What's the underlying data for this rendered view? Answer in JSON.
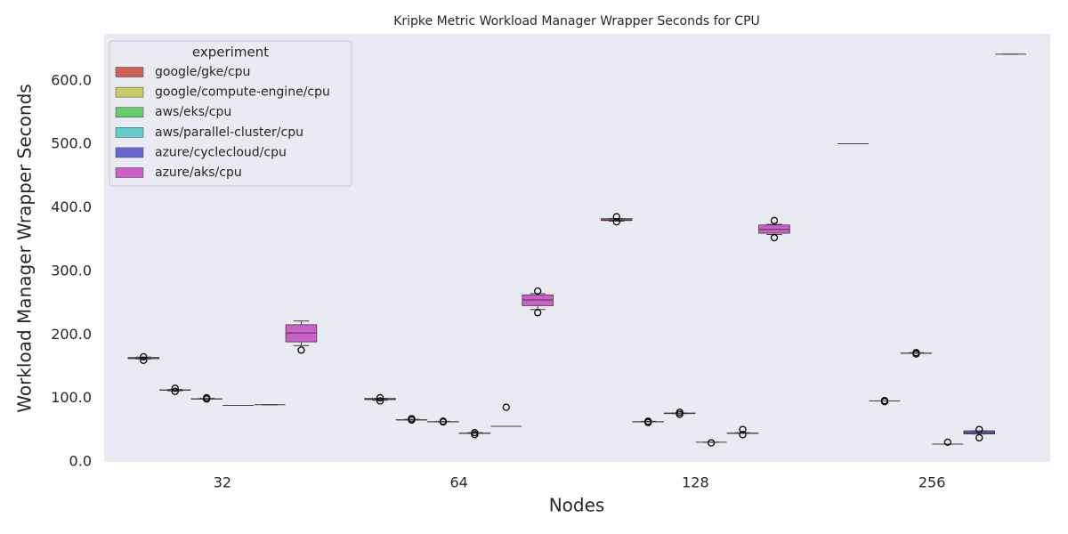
{
  "chart_data": {
    "type": "box",
    "title": "Kripke Metric Workload Manager Wrapper Seconds for CPU",
    "x_label": "Nodes",
    "y_label": "Workload Manager Wrapper Seconds",
    "legend_title": "experiment",
    "legend_position": "upper left",
    "grid": false,
    "categories": [
      "32",
      "64",
      "128",
      "256"
    ],
    "ylim": [
      0,
      674
    ],
    "yticks": [
      {
        "value": 0,
        "label": "0.0"
      },
      {
        "value": 100,
        "label": "100.0"
      },
      {
        "value": 200,
        "label": "200.0"
      },
      {
        "value": 300,
        "label": "300.0"
      },
      {
        "value": 400,
        "label": "400.0"
      },
      {
        "value": 500,
        "label": "500.0"
      },
      {
        "value": 600,
        "label": "600.0"
      }
    ],
    "series": [
      {
        "name": "google/gke/cpu",
        "color": "#cd6058",
        "boxes": [
          {
            "min": 162,
            "q1": 162.5,
            "median": 163,
            "q3": 164.5,
            "max": 165,
            "outliers": [
              160,
              165.5
            ]
          },
          {
            "min": 97,
            "q1": 98,
            "median": 99,
            "q3": 100,
            "max": 100,
            "outliers": [
              96,
              101
            ]
          },
          {
            "min": 379,
            "q1": 380,
            "median": 381,
            "q3": 383,
            "max": 383,
            "outliers": [
              378,
              386
            ]
          },
          {
            "min": 501,
            "q1": 501,
            "median": 501,
            "q3": 501,
            "max": 501
          }
        ]
      },
      {
        "name": "google/compute-engine/cpu",
        "color": "#c6cd63",
        "boxes": [
          {
            "min": 112,
            "q1": 113,
            "median": 113,
            "q3": 113.5,
            "max": 114,
            "outliers": [
              111,
              116
            ]
          },
          {
            "min": 66,
            "q1": 66,
            "median": 66,
            "q3": 66.5,
            "max": 67,
            "outliers": [
              66,
              68
            ]
          },
          {
            "min": 63,
            "q1": 63,
            "median": 63,
            "q3": 63.5,
            "max": 64,
            "outliers": [
              62,
              64
            ]
          },
          {
            "min": 96,
            "q1": 96,
            "median": 96,
            "q3": 96,
            "max": 96,
            "outliers": [
              95,
              96.5
            ]
          }
        ]
      },
      {
        "name": "aws/eks/cpu",
        "color": "#63cd6b",
        "boxes": [
          {
            "min": 99,
            "q1": 99,
            "median": 99,
            "q3": 99.5,
            "max": 100,
            "outliers": [
              99,
              101
            ]
          },
          {
            "min": 63,
            "q1": 63,
            "median": 63,
            "q3": 63.5,
            "max": 64,
            "outliers": [
              63,
              64
            ]
          },
          {
            "min": 76,
            "q1": 76,
            "median": 76.5,
            "q3": 77,
            "max": 77,
            "outliers": [
              75,
              78
            ]
          },
          {
            "min": 171,
            "q1": 171,
            "median": 171,
            "q3": 171.5,
            "max": 172,
            "outliers": [
              170,
              172
            ]
          }
        ]
      },
      {
        "name": "aws/parallel-cluster/cpu",
        "color": "#63cdc9",
        "boxes": [
          {
            "min": 89,
            "q1": 89,
            "median": 89,
            "q3": 89,
            "max": 89
          },
          {
            "min": 45,
            "q1": 45,
            "median": 45,
            "q3": 45.5,
            "max": 46,
            "outliers": [
              43,
              46
            ]
          },
          {
            "min": 31,
            "q1": 31,
            "median": 31,
            "q3": 31,
            "max": 31,
            "outliers": [
              30
            ]
          },
          {
            "min": 28,
            "q1": 28,
            "median": 28,
            "q3": 28,
            "max": 28,
            "outliers": [
              31
            ]
          }
        ]
      },
      {
        "name": "azure/cyclecloud/cpu",
        "color": "#6865d0",
        "boxes": [
          {
            "min": 90,
            "q1": 90,
            "median": 90,
            "q3": 90,
            "max": 90
          },
          {
            "min": 56,
            "q1": 56,
            "median": 56,
            "q3": 56,
            "max": 56,
            "outliers": [
              86
            ]
          },
          {
            "min": 45,
            "q1": 45,
            "median": 45,
            "q3": 45.5,
            "max": 46,
            "outliers": [
              43,
              51
            ]
          },
          {
            "min": 44,
            "q1": 44,
            "median": 46,
            "q3": 49,
            "max": 49,
            "outliers": [
              38,
              51
            ]
          }
        ]
      },
      {
        "name": "azure/aks/cpu",
        "color": "#cd5fc9",
        "boxes": [
          {
            "min": 183,
            "q1": 189,
            "median": 203,
            "q3": 216,
            "max": 222,
            "outliers": [
              176
            ]
          },
          {
            "min": 240,
            "q1": 246,
            "median": 255,
            "q3": 263,
            "max": 265,
            "outliers": [
              235,
              269
            ]
          },
          {
            "min": 358,
            "q1": 360,
            "median": 366,
            "q3": 373,
            "max": 374,
            "outliers": [
              353,
              380
            ]
          },
          {
            "min": 642,
            "q1": 642,
            "median": 642,
            "q3": 642,
            "max": 642
          }
        ]
      }
    ]
  }
}
